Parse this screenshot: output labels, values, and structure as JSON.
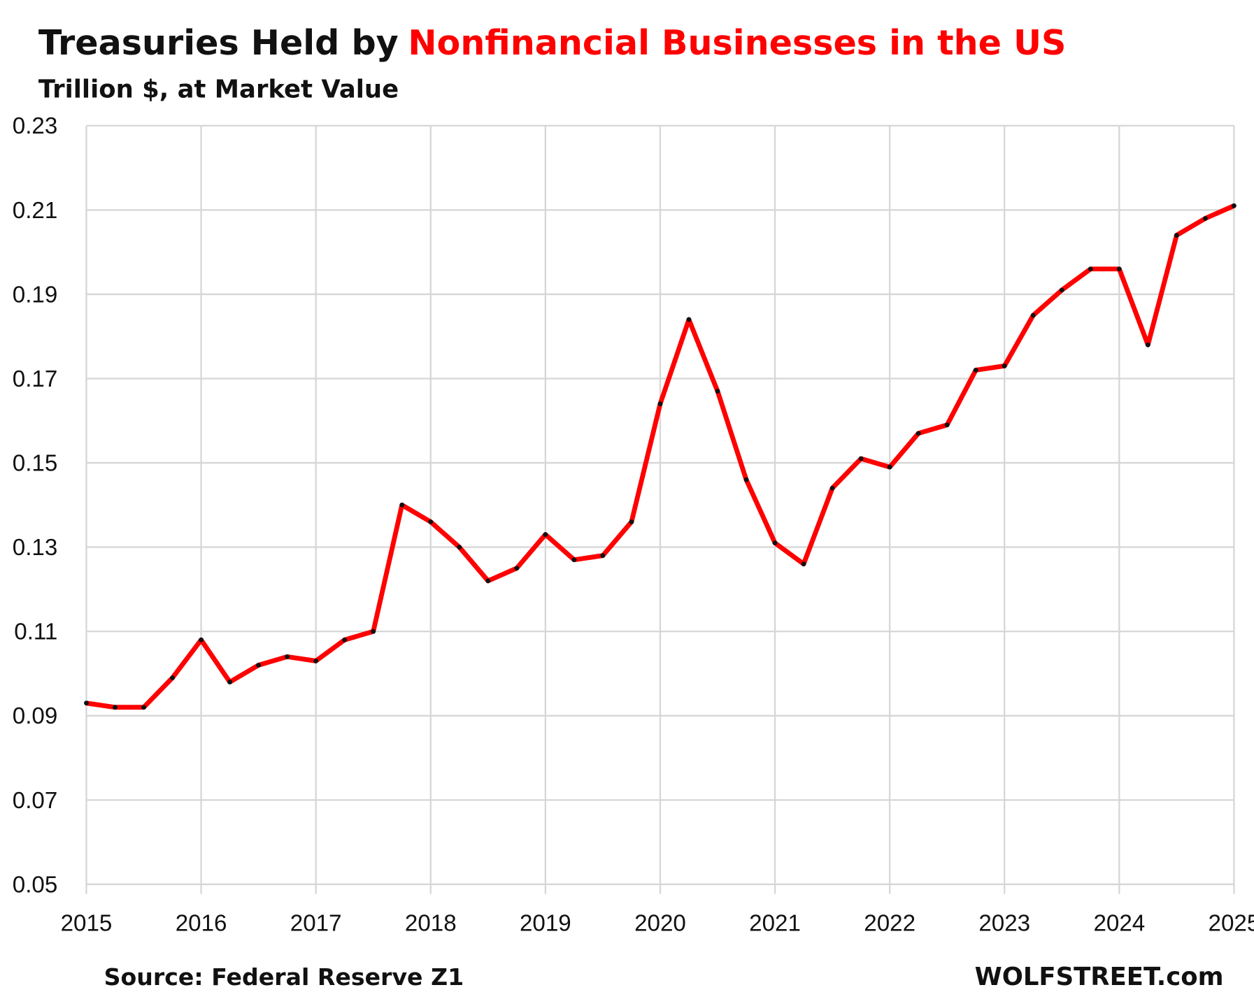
{
  "chart_data": {
    "type": "line",
    "title": "Treasuries Held by",
    "title_highlight": "Nonfinancial Businesses in the US",
    "subtitle": "Trillion $, at Market Value",
    "source": "Source: Federal Reserve Z1",
    "credit": "WOLFSTREET.com",
    "x": [
      2015,
      2015.25,
      2015.5,
      2015.75,
      2016,
      2016.25,
      2016.5,
      2016.75,
      2017,
      2017.25,
      2017.5,
      2017.75,
      2018,
      2018.25,
      2018.5,
      2018.75,
      2019,
      2019.25,
      2019.5,
      2019.75,
      2020,
      2020.25,
      2020.5,
      2020.75,
      2021,
      2021.25,
      2021.5,
      2021.75,
      2022,
      2022.25,
      2022.5,
      2022.75,
      2023,
      2023.25,
      2023.5,
      2023.75,
      2024,
      2024.25,
      2024.5,
      2024.75,
      2025
    ],
    "series": [
      {
        "name": "Treasuries",
        "color": "#ff0000",
        "marker_color": "#111111",
        "values": [
          0.093,
          0.092,
          0.092,
          0.099,
          0.108,
          0.098,
          0.102,
          0.104,
          0.103,
          0.108,
          0.11,
          0.14,
          0.136,
          0.13,
          0.122,
          0.125,
          0.133,
          0.127,
          0.128,
          0.136,
          0.164,
          0.184,
          0.167,
          0.146,
          0.131,
          0.126,
          0.144,
          0.151,
          0.149,
          0.157,
          0.159,
          0.172,
          0.173,
          0.185,
          0.191,
          0.196,
          0.196,
          0.178,
          0.204,
          0.208,
          0.211
        ]
      }
    ],
    "xlim": [
      2015,
      2025
    ],
    "xticks": [
      2015,
      2016,
      2017,
      2018,
      2019,
      2020,
      2021,
      2022,
      2023,
      2024,
      2025
    ],
    "ylim": [
      0.05,
      0.23
    ],
    "yticks": [
      0.05,
      0.07,
      0.09,
      0.11,
      0.13,
      0.15,
      0.17,
      0.19,
      0.21,
      0.23
    ],
    "grid": true
  }
}
